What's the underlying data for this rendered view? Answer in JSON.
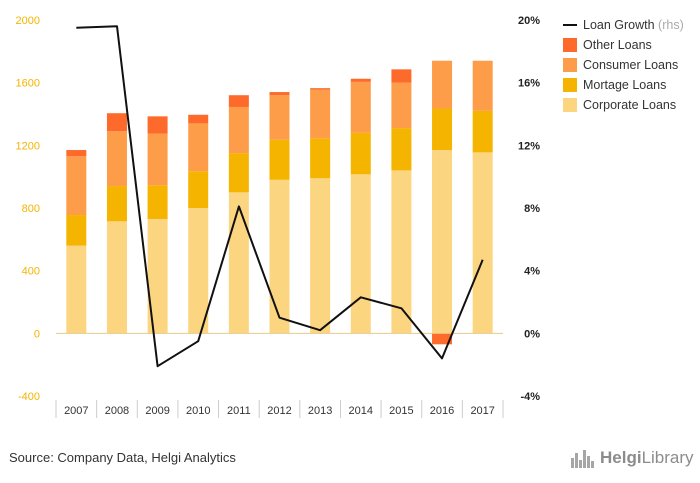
{
  "chart_data": {
    "type": "bar",
    "stacked": true,
    "categories": [
      "2007",
      "2008",
      "2009",
      "2010",
      "2011",
      "2012",
      "2013",
      "2014",
      "2015",
      "2016",
      "2017"
    ],
    "series": [
      {
        "name": "Corporate Loans",
        "color": "#fcd581",
        "values": [
          560,
          715,
          730,
          800,
          900,
          980,
          990,
          1015,
          1040,
          1170,
          1155
        ]
      },
      {
        "name": "Mortage Loans",
        "color": "#f5b400",
        "values": [
          195,
          225,
          215,
          235,
          250,
          255,
          255,
          265,
          270,
          265,
          265
        ]
      },
      {
        "name": "Consumer Loans",
        "color": "#fd9d49",
        "values": [
          375,
          350,
          330,
          305,
          295,
          285,
          310,
          325,
          290,
          305,
          320
        ]
      },
      {
        "name": "Other Loans",
        "color": "#fd6a2b",
        "values": [
          40,
          115,
          110,
          55,
          75,
          20,
          10,
          20,
          85,
          -70,
          0
        ]
      }
    ],
    "line_series": {
      "name": "Loan Growth",
      "note": "(rhs)",
      "color": "#111111",
      "values": [
        19.5,
        19.6,
        -2.1,
        -0.5,
        8.1,
        1.0,
        0.2,
        2.3,
        1.6,
        -1.6,
        4.7
      ]
    },
    "ylim_left": [
      -400,
      2000
    ],
    "yticks_left": [
      "-400",
      "0",
      "400",
      "800",
      "1200",
      "1600",
      "2000"
    ],
    "ylim_right": [
      -4,
      20
    ],
    "yticks_right": [
      "-4%",
      "0%",
      "4%",
      "8%",
      "12%",
      "16%",
      "20%"
    ],
    "legend_position": "top-right",
    "grid": false
  },
  "source": "Source: Company Data, Helgi Analytics",
  "logo": {
    "text": "HelgiLibrary",
    "first": "Helgi",
    "second": "Library"
  },
  "colors": {
    "zero_line": "#e8c98a",
    "separator": "#cccccc"
  }
}
